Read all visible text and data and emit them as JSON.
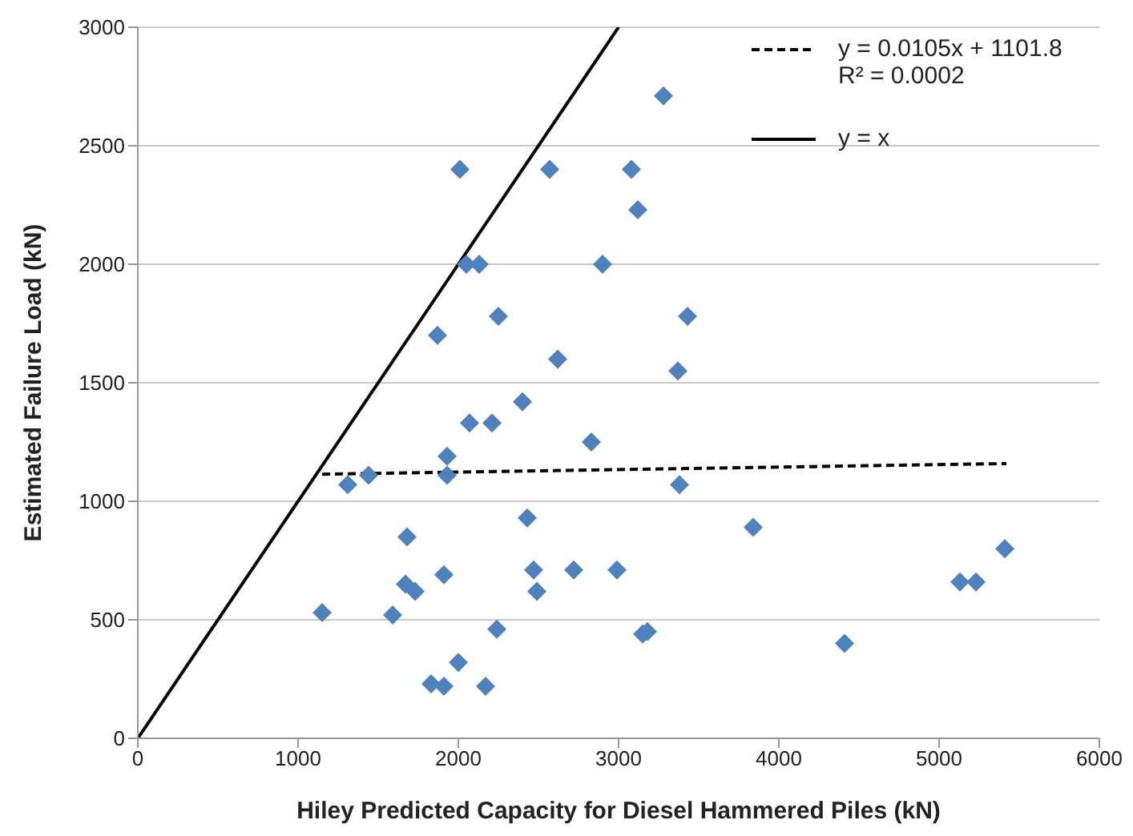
{
  "chart_data": {
    "type": "scatter",
    "xlabel": "Hiley Predicted Capacity for Diesel Hammered Piles (kN)",
    "ylabel": "Estimated Failure Load (kN)",
    "xlim": [
      0,
      6000
    ],
    "xticks": [
      0,
      1000,
      2000,
      3000,
      4000,
      5000,
      6000
    ],
    "ylim": [
      0,
      3000
    ],
    "yticks": [
      0,
      500,
      1000,
      1500,
      2000,
      2500,
      3000
    ],
    "grid": "y",
    "legend": "top right",
    "annotations": [
      "R² = 0.0002"
    ],
    "series": [
      {
        "marker": "diamond",
        "color": "#4f81bd",
        "x": [
          2010,
          2570,
          3280,
          3080,
          3120,
          2050,
          2130,
          2900,
          2250,
          1870,
          2620,
          3430,
          3370,
          2400,
          2070,
          2210,
          2830,
          1930,
          1930,
          1440,
          1310,
          2430,
          1680,
          1910,
          2470,
          2720,
          2490,
          1670,
          1730,
          1150,
          1590,
          2240,
          2000,
          1830,
          1910,
          2170,
          2990,
          3380,
          3840,
          3150,
          3180,
          4410,
          5130,
          5230,
          5410
        ],
        "values": [
          2400,
          2400,
          2710,
          2400,
          2230,
          2000,
          2000,
          2000,
          1780,
          1700,
          1600,
          1780,
          1550,
          1420,
          1330,
          1330,
          1250,
          1190,
          1110,
          1110,
          1070,
          930,
          850,
          690,
          710,
          710,
          620,
          650,
          620,
          530,
          520,
          460,
          320,
          230,
          220,
          220,
          710,
          1070,
          890,
          440,
          450,
          400,
          660,
          660,
          800
        ]
      },
      {
        "type": "line",
        "name": "y = 0.0105x + 1101.8",
        "color": "#000000",
        "line_style": "dashed",
        "marker": "none",
        "x": [
          1150,
          5420
        ],
        "values": [
          1114,
          1159
        ]
      },
      {
        "type": "line",
        "name": "y = x",
        "color": "#000000",
        "line_style": "solid",
        "marker": "none",
        "x": [
          0,
          3000
        ],
        "values": [
          0,
          3000
        ]
      }
    ]
  }
}
